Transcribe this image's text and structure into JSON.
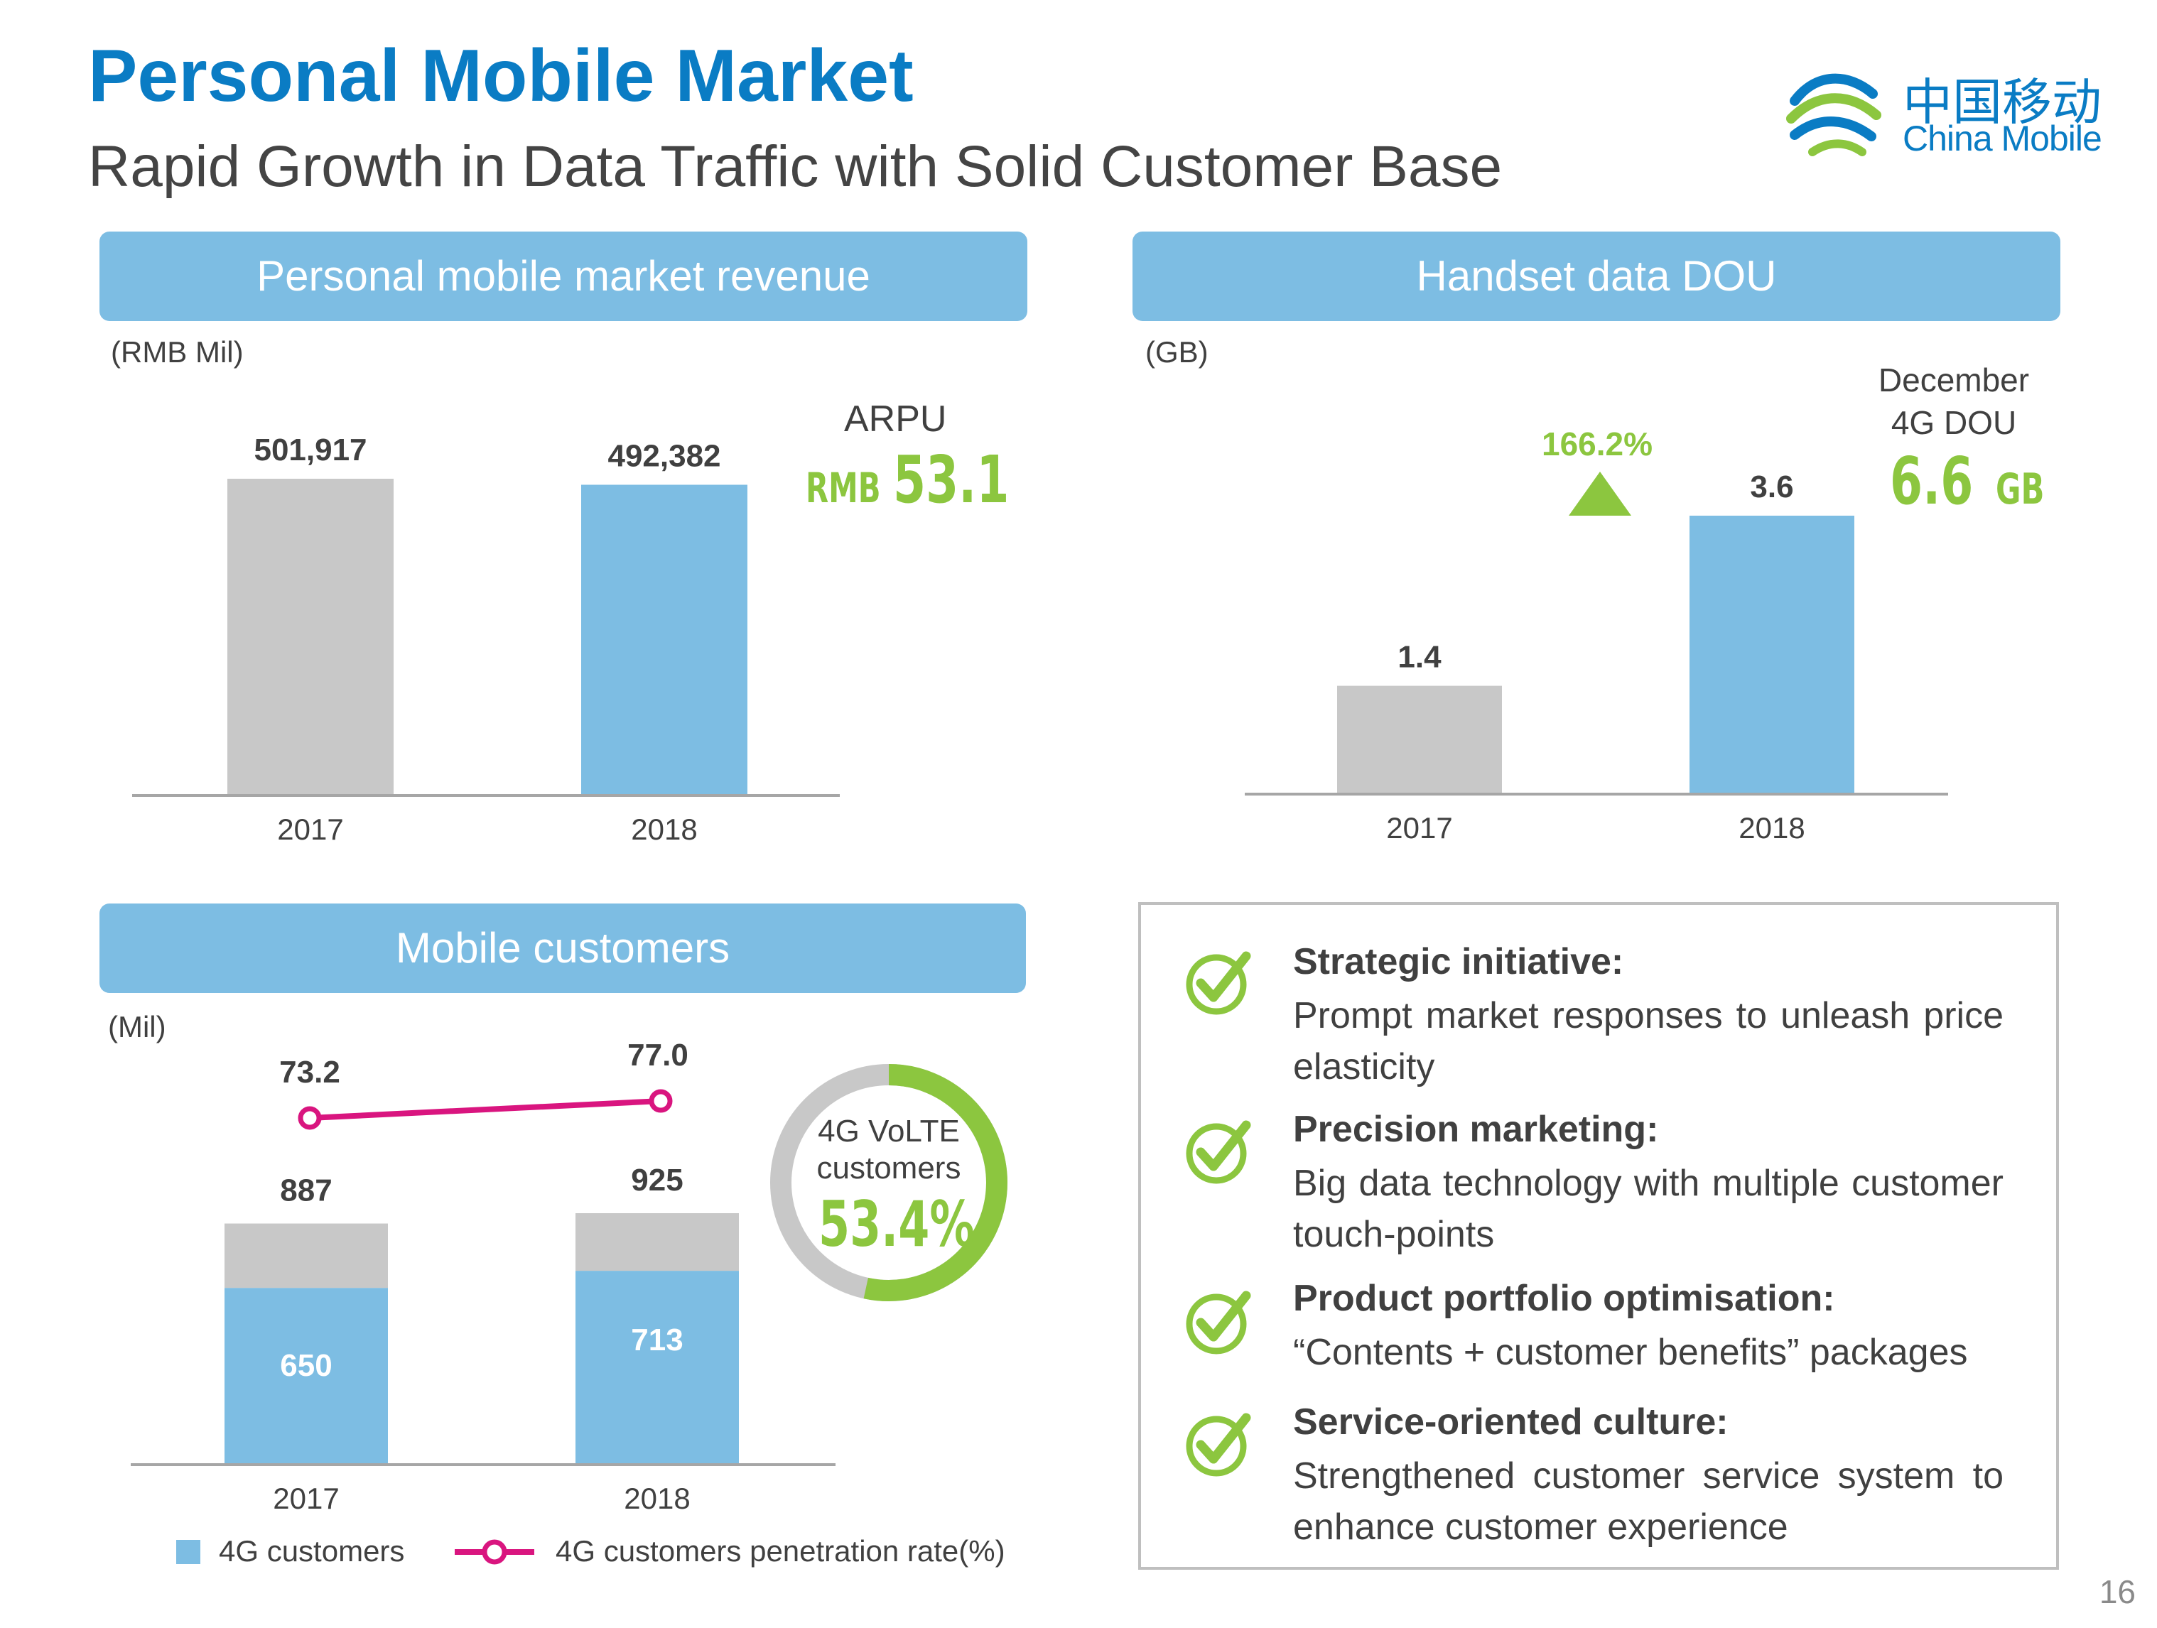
{
  "header": {
    "title": "Personal Mobile Market",
    "subtitle": "Rapid Growth in Data Traffic with Solid Customer Base",
    "logo_cn": "中国移动",
    "logo_en": "China Mobile"
  },
  "colors": {
    "brand_blue": "#0a7cc4",
    "header_blue": "#7dbde3",
    "bar_grey": "#c8c8c8",
    "bar_blue": "#7dbde3",
    "accent_green": "#8cc63f",
    "line_magenta": "#d9157f"
  },
  "revenue_panel": {
    "header": "Personal mobile market revenue",
    "unit": "(RMB Mil)",
    "arpu_label": "ARPU",
    "arpu_prefix": "RMB",
    "arpu_value": "53.1"
  },
  "dou_panel": {
    "header": "Handset data DOU",
    "unit": "(GB)",
    "growth": "166.2%",
    "december_label_1": "December",
    "december_label_2": "4G DOU",
    "december_value": "6.6",
    "december_unit": "GB"
  },
  "customers_panel": {
    "header": "Mobile customers",
    "unit": "(Mil)",
    "volte_label_1": "4G VoLTE",
    "volte_label_2": "customers",
    "volte_value": "53.4%",
    "legend_4g": "4G customers",
    "legend_rate": "4G customers penetration rate(%)"
  },
  "chart_data": [
    {
      "type": "bar",
      "categories": [
        "2017",
        "2018"
      ],
      "values": [
        501917,
        492382
      ],
      "value_labels": [
        "501,917",
        "492,382"
      ],
      "ylabel": "(RMB Mil)"
    },
    {
      "type": "bar",
      "categories": [
        "2017",
        "2018"
      ],
      "values": [
        1.4,
        3.6
      ],
      "value_labels": [
        "1.4",
        "3.6"
      ],
      "ylabel": "(GB)"
    },
    {
      "type": "bar",
      "stacked": true,
      "categories": [
        "2017",
        "2018"
      ],
      "totals": [
        887,
        925
      ],
      "total_labels": [
        "887",
        "925"
      ],
      "series": [
        {
          "name": "4G customers",
          "values": [
            650,
            713
          ],
          "labels": [
            "650",
            "713"
          ]
        }
      ],
      "line_series": {
        "name": "4G customers penetration rate(%)",
        "values": [
          73.2,
          77.0
        ],
        "labels": [
          "73.2",
          "77.0"
        ]
      },
      "ylabel": "(Mil)"
    },
    {
      "type": "pie",
      "values": [
        53.4
      ],
      "value_label": "53.4%"
    }
  ],
  "initiatives": [
    {
      "title": "Strategic initiative:",
      "text": "Prompt market responses to unleash price elasticity"
    },
    {
      "title": "Precision marketing:",
      "text": "Big data technology with multiple customer touch-points"
    },
    {
      "title": "Product portfolio optimisation:",
      "text": "“Contents + customer benefits” packages"
    },
    {
      "title": "Service-oriented culture:",
      "text": "Strengthened customer service system to enhance customer experience"
    }
  ],
  "page_number": "16"
}
